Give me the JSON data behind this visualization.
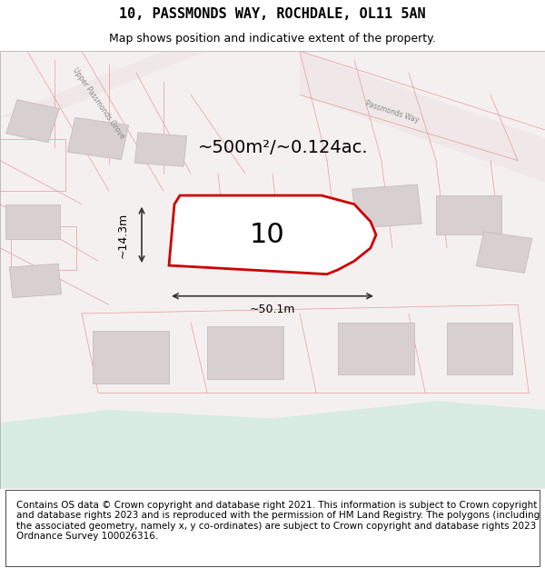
{
  "title_line1": "10, PASSMONDS WAY, ROCHDALE, OL11 5AN",
  "title_line2": "Map shows position and indicative extent of the property.",
  "footer_text": "Contains OS data © Crown copyright and database right 2021. This information is subject to Crown copyright and database rights 2023 and is reproduced with the permission of HM Land Registry. The polygons (including the associated geometry, namely x, y co-ordinates) are subject to Crown copyright and database rights 2023 Ordnance Survey 100026316.",
  "area_label": "~500m²/~0.124ac.",
  "width_label": "~50.1m",
  "height_label": "~14.3m",
  "plot_number": "10",
  "bg_color": "#f5f0f0",
  "map_bg": "#f5f0f0",
  "road_color": "#f5f0f0",
  "plot_outline_color": "#cc0000",
  "plot_fill_color": "#ffffff",
  "light_road_color": "#e8d8d8",
  "dim_line_color": "#333333",
  "other_plot_color": "#e8e0e0",
  "green_area_color": "#d8ece4",
  "title_fontsize": 11,
  "subtitle_fontsize": 9,
  "footer_fontsize": 7.5
}
